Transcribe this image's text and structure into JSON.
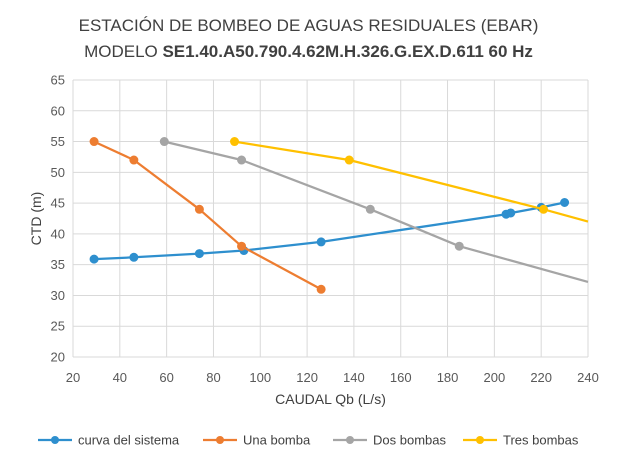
{
  "chart_data": {
    "type": "line",
    "title_line1": "ESTACIÓN DE BOMBEO DE AGUAS RESIDUALES (EBAR)",
    "title_line2_prefix": "MODELO ",
    "title_line2_model": "SE1.40.A50.790.4.62M.H.326.G.EX.D.611 60 Hz",
    "xlabel": "CAUDAL Qb (L/s)",
    "ylabel": "CTD (m)",
    "xlim": [
      20,
      240
    ],
    "ylim": [
      20,
      65
    ],
    "xticks": [
      20,
      40,
      60,
      80,
      100,
      120,
      140,
      160,
      180,
      200,
      220,
      240
    ],
    "yticks": [
      20,
      25,
      30,
      35,
      40,
      45,
      50,
      55,
      60,
      65
    ],
    "grid": true,
    "legend_position": "bottom",
    "series": [
      {
        "name": "curva del sistema",
        "color": "#2E8FCE",
        "line": [
          [
            29,
            35.9
          ],
          [
            46,
            36.2
          ],
          [
            74,
            36.8
          ],
          [
            93,
            37.3
          ],
          [
            126,
            38.7
          ],
          [
            205,
            43.2
          ],
          [
            207,
            43.4
          ],
          [
            220,
            44.3
          ],
          [
            230,
            45.1
          ]
        ],
        "markers": [
          [
            29,
            35.9
          ],
          [
            46,
            36.2
          ],
          [
            74,
            36.8
          ],
          [
            93,
            37.3
          ],
          [
            126,
            38.7
          ],
          [
            205,
            43.2
          ],
          [
            207,
            43.4
          ],
          [
            220,
            44.3
          ],
          [
            230,
            45.1
          ]
        ]
      },
      {
        "name": "Una bomba",
        "color": "#ED7D31",
        "line": [
          [
            29,
            55
          ],
          [
            46,
            52
          ],
          [
            74,
            44
          ],
          [
            92,
            38
          ],
          [
            126,
            31
          ]
        ],
        "markers": [
          [
            29,
            55
          ],
          [
            46,
            52
          ],
          [
            74,
            44
          ],
          [
            92,
            38
          ],
          [
            126,
            31
          ]
        ]
      },
      {
        "name": "Dos bombas",
        "color": "#A5A5A5",
        "line": [
          [
            59,
            55
          ],
          [
            92,
            52
          ],
          [
            147,
            44
          ],
          [
            185,
            38
          ],
          [
            240,
            32.2
          ]
        ],
        "markers": [
          [
            59,
            55
          ],
          [
            92,
            52
          ],
          [
            147,
            44
          ],
          [
            185,
            38
          ]
        ]
      },
      {
        "name": "Tres bombas",
        "color": "#FFC000",
        "line": [
          [
            89,
            55
          ],
          [
            138,
            52
          ],
          [
            221,
            44
          ],
          [
            240,
            42
          ]
        ],
        "markers": [
          [
            89,
            55
          ],
          [
            138,
            52
          ],
          [
            221,
            44
          ]
        ]
      }
    ]
  }
}
